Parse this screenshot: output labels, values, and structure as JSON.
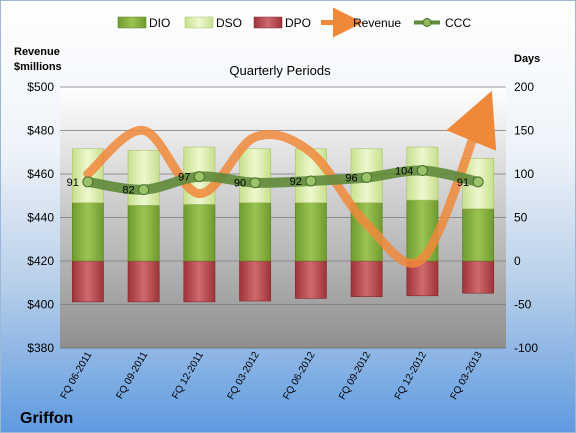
{
  "chart_data": {
    "type": "bar",
    "title": "Quarterly Periods",
    "company": "Griffon",
    "left_axis_label": "Revenue\n$millions",
    "right_axis_label": "Days",
    "left_ylim": [
      380,
      500
    ],
    "left_ticks": [
      "$380",
      "$400",
      "$420",
      "$440",
      "$460",
      "$480",
      "$500"
    ],
    "right_ylim": [
      -100,
      200
    ],
    "right_ticks": [
      "-100",
      "-50",
      "0",
      "50",
      "100",
      "150",
      "200"
    ],
    "grid": true,
    "legend_position": "top",
    "legend": [
      "DIO",
      "DSO",
      "DPO",
      "Revenue",
      "CCC"
    ],
    "categories": [
      "FQ 06-2011",
      "FQ 09-2011",
      "FQ 12-2011",
      "FQ 03-2012",
      "FQ 06-2012",
      "FQ 09-2012",
      "FQ 12-2012",
      "FQ 03-2013"
    ],
    "series": [
      {
        "name": "DIO",
        "axis": "right",
        "values": [
          67,
          64,
          65,
          67,
          67,
          67,
          70,
          60
        ]
      },
      {
        "name": "DSO",
        "axis": "right",
        "values": [
          62,
          63,
          66,
          62,
          62,
          62,
          61,
          58
        ]
      },
      {
        "name": "DPO",
        "axis": "right",
        "values": [
          -47,
          -47,
          -47,
          -46,
          -43,
          -41,
          -40,
          -37
        ]
      },
      {
        "name": "Revenue",
        "axis": "left",
        "values": [
          460,
          480,
          451,
          477,
          470,
          437,
          421,
          483
        ]
      },
      {
        "name": "CCC",
        "axis": "right",
        "values": [
          91,
          82,
          97,
          90,
          92,
          96,
          104,
          91
        ]
      }
    ],
    "ccc_labels": [
      "91",
      "82",
      "97",
      "90",
      "92",
      "96",
      "104",
      "91"
    ],
    "colors": {
      "dio": "#7fa83a",
      "dso": "#d9eca8",
      "dpo": "#b8454a",
      "revenue": "#f0883a",
      "ccc": "#5f8a3a",
      "plot_bg_top": "#ffffff",
      "plot_bg_bottom": "#9a9a9a"
    }
  }
}
